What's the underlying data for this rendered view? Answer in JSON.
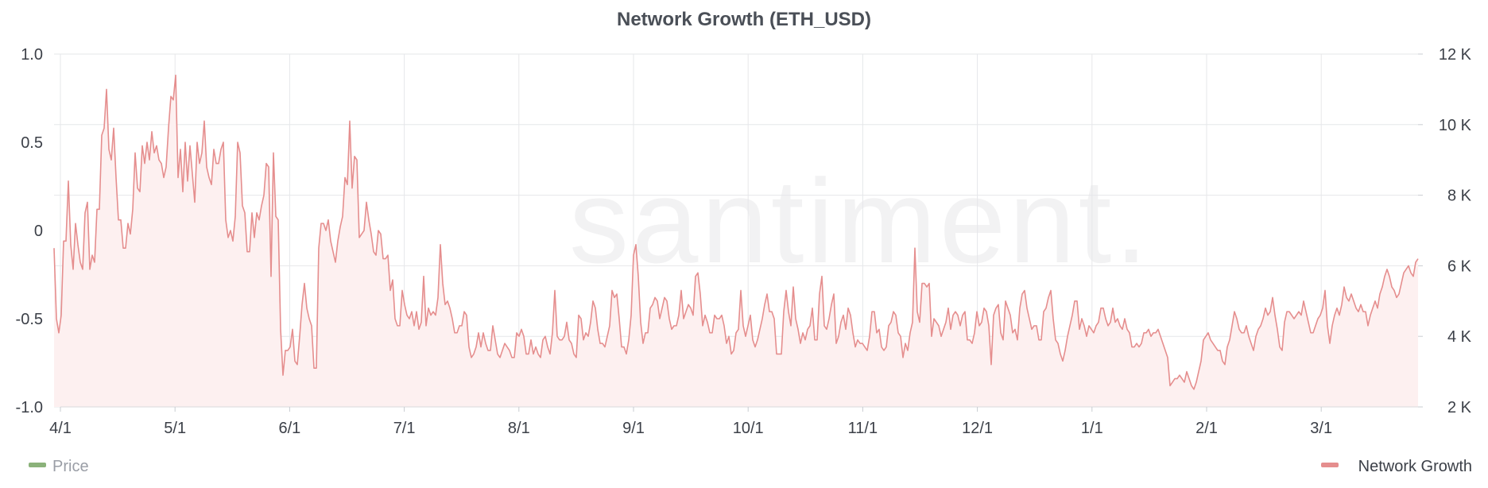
{
  "chart_data": {
    "type": "area",
    "title": "Network Growth (ETH_USD)",
    "watermark": "santiment.",
    "x_ticks": [
      "4/1",
      "5/1",
      "6/1",
      "7/1",
      "8/1",
      "9/1",
      "10/1",
      "11/1",
      "12/1",
      "1/1",
      "2/1",
      "3/1"
    ],
    "y_left_ticks": [
      "1.0",
      "0.5",
      "0",
      "-0.5",
      "-1.0"
    ],
    "y_left_lim": [
      -1.0,
      1.0
    ],
    "y_right_ticks": [
      "12 K",
      "10 K",
      "8 K",
      "6 K",
      "4 K",
      "2 K"
    ],
    "y_right_lim": [
      2000,
      12000
    ],
    "grid": true,
    "legend_position": "bottom",
    "series": [
      {
        "name": "Price",
        "axis": "left",
        "color": "#8bb27a",
        "values": []
      },
      {
        "name": "Network Growth",
        "axis": "right",
        "color": "#e58e8e",
        "fill": "#fdf0f0",
        "values": [
          6500,
          4500,
          4100,
          4600,
          6700,
          6700,
          8400,
          6600,
          5900,
          7200,
          6600,
          6100,
          5900,
          7500,
          7800,
          5900,
          6300,
          6100,
          7600,
          7600,
          9700,
          9900,
          11000,
          9300,
          9000,
          9900,
          8500,
          7300,
          7300,
          6500,
          6500,
          7200,
          6900,
          7600,
          9200,
          8200,
          8100,
          9400,
          8900,
          9500,
          9000,
          9800,
          9200,
          9400,
          9000,
          8900,
          8500,
          8800,
          9900,
          10800,
          10700,
          11400,
          8500,
          9300,
          8100,
          9500,
          8400,
          9400,
          8600,
          7800,
          9500,
          8900,
          9200,
          10100,
          8800,
          8500,
          8300,
          9300,
          8900,
          8900,
          9300,
          9500,
          7300,
          6800,
          7000,
          6700,
          7400,
          9500,
          9200,
          7700,
          7500,
          6400,
          6400,
          7500,
          6800,
          7500,
          7300,
          7700,
          8000,
          8900,
          8800,
          5700,
          9200,
          7400,
          7300,
          4200,
          2900,
          3600,
          3600,
          3700,
          4200,
          3300,
          3200,
          4000,
          4900,
          5500,
          4800,
          4500,
          4300,
          3100,
          3100,
          6500,
          7200,
          7200,
          7000,
          7300,
          6700,
          6400,
          6100,
          6700,
          7100,
          7400,
          8500,
          8300,
          10100,
          8200,
          9100,
          9000,
          6800,
          6900,
          7000,
          7800,
          7300,
          6900,
          6400,
          6300,
          7000,
          6900,
          6200,
          6200,
          6300,
          5300,
          5600,
          4500,
          4300,
          4300,
          5300,
          4900,
          4600,
          4500,
          4700,
          4300,
          4700,
          4200,
          4400,
          5700,
          4300,
          4800,
          4600,
          4700,
          4600,
          5100,
          6600,
          5500,
          4900,
          5000,
          4800,
          4500,
          4100,
          4100,
          4300,
          4300,
          4700,
          4600,
          3700,
          3400,
          3500,
          3700,
          4100,
          3700,
          4100,
          3800,
          3600,
          3600,
          4300,
          3900,
          3500,
          3400,
          3600,
          3800,
          3700,
          3600,
          3400,
          3400,
          4100,
          4000,
          4200,
          4000,
          3500,
          3500,
          3900,
          3500,
          3700,
          3500,
          3400,
          3900,
          4000,
          3700,
          3500,
          4100,
          5300,
          4000,
          3900,
          3900,
          4000,
          4400,
          3900,
          3800,
          3500,
          3400,
          4600,
          4500,
          3900,
          4100,
          4000,
          4400,
          5000,
          4800,
          4200,
          3800,
          3800,
          3700,
          4000,
          4300,
          5300,
          5100,
          5200,
          4500,
          3700,
          3700,
          3500,
          3900,
          4600,
          6300,
          6600,
          5700,
          4400,
          3800,
          4100,
          4100,
          4800,
          4900,
          5100,
          5000,
          4500,
          4800,
          5100,
          5000,
          4500,
          4200,
          4300,
          4300,
          4600,
          5300,
          4500,
          4700,
          4900,
          4800,
          4600,
          5700,
          5800,
          5200,
          4300,
          4600,
          4400,
          4100,
          4100,
          4600,
          4500,
          4500,
          4600,
          4300,
          3800,
          4000,
          3500,
          3600,
          4100,
          4200,
          5300,
          4300,
          4000,
          4300,
          4600,
          3900,
          3700,
          3900,
          4200,
          4500,
          4900,
          5200,
          4700,
          4700,
          4500,
          3500,
          3500,
          3500,
          4700,
          5300,
          4700,
          4300,
          5400,
          4500,
          4200,
          3800,
          4100,
          3900,
          4200,
          4300,
          4800,
          3900,
          3900,
          5200,
          5700,
          4300,
          4200,
          4500,
          4900,
          5200,
          3800,
          4000,
          4400,
          4600,
          4200,
          4800,
          4600,
          4100,
          3700,
          3900,
          3800,
          3800,
          3700,
          3600,
          4000,
          4700,
          4700,
          4100,
          4200,
          3700,
          3600,
          3700,
          4300,
          4400,
          4700,
          4600,
          4100,
          4000,
          3400,
          3800,
          3600,
          4100,
          4400,
          6500,
          4700,
          4400,
          5500,
          5500,
          5400,
          5500,
          4000,
          4500,
          4400,
          4300,
          4000,
          4200,
          4400,
          4800,
          4200,
          4600,
          4700,
          4600,
          4300,
          4600,
          4700,
          3900,
          3900,
          3800,
          4100,
          4700,
          4300,
          4400,
          4800,
          4700,
          4300,
          3200,
          4600,
          4800,
          4900,
          4100,
          3900,
          5000,
          4800,
          4600,
          4100,
          4200,
          3900,
          4800,
          5200,
          5300,
          4800,
          4500,
          4200,
          4300,
          4300,
          3900,
          3900,
          4700,
          4800,
          5100,
          5300,
          4500,
          3900,
          3800,
          3500,
          3300,
          3600,
          4000,
          4300,
          4600,
          5000,
          5000,
          4200,
          4500,
          4300,
          4000,
          4300,
          4200,
          4100,
          4300,
          4400,
          4800,
          4800,
          4500,
          4300,
          4400,
          4800,
          4400,
          4500,
          4300,
          4200,
          4500,
          4200,
          4100,
          3700,
          3700,
          3800,
          3700,
          3800,
          4100,
          4100,
          4200,
          4000,
          4100,
          4100,
          4200,
          4000,
          3800,
          3600,
          3400,
          2600,
          2700,
          2800,
          2800,
          2900,
          2800,
          2700,
          3000,
          2800,
          2600,
          2500,
          2700,
          3000,
          3300,
          3900,
          4000,
          4100,
          3900,
          3800,
          3700,
          3600,
          3600,
          3300,
          3200,
          3700,
          3900,
          4300,
          4700,
          4500,
          4200,
          4100,
          4100,
          4300,
          4000,
          3800,
          3600,
          4000,
          4200,
          4300,
          4500,
          4800,
          4600,
          4700,
          5100,
          4600,
          4200,
          3700,
          3600,
          4400,
          4700,
          4700,
          4600,
          4500,
          4600,
          4700,
          4600,
          5000,
          4700,
          4400,
          4100,
          4100,
          4300,
          4500,
          4600,
          4800,
          5300,
          4300,
          3800,
          4300,
          4600,
          4800,
          4600,
          4900,
          5400,
          5100,
          5000,
          5200,
          5000,
          4800,
          4700,
          4900,
          4700,
          4700,
          4300,
          4600,
          4800,
          5000,
          4800,
          5200,
          5400,
          5700,
          5900,
          5700,
          5400,
          5300,
          5100,
          5200,
          5500,
          5800,
          5900,
          6000,
          5800,
          5700,
          6100,
          6200
        ]
      }
    ]
  },
  "legend": {
    "price_label": "Price",
    "network_growth_label": "Network Growth"
  }
}
